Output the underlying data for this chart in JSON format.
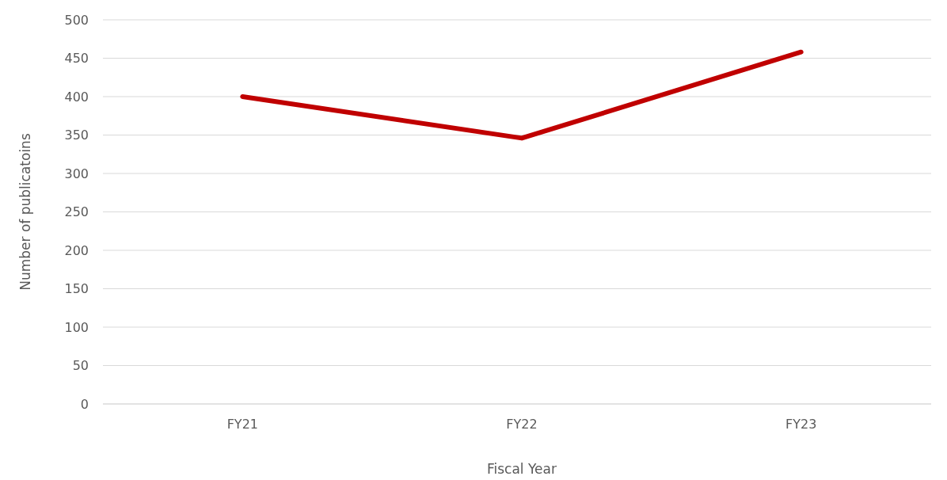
{
  "chart_data": {
    "type": "line",
    "xlabel": "Fiscal Year",
    "ylabel": "Number of publicatoins",
    "categories": [
      "FY21",
      "FY22",
      "FY23"
    ],
    "series": [
      {
        "color": "#c00000",
        "values": [
          400,
          346,
          458
        ]
      }
    ],
    "ylim": [
      0,
      500
    ],
    "yticks": [
      0,
      50,
      100,
      150,
      200,
      250,
      300,
      350,
      400,
      450,
      500
    ],
    "grid": "y",
    "marker": "none",
    "line_style": "solid"
  }
}
